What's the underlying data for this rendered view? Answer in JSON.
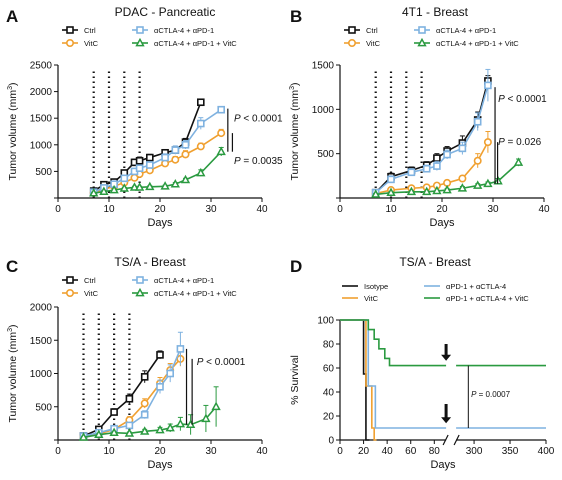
{
  "chart_data": [
    {
      "panel": "A",
      "type": "line",
      "title": "PDAC - Pancreatic",
      "xlabel": "Days",
      "ylabel": "Tumor volume (mm",
      "ylabel_sup": "3",
      "ylabel_close": ")",
      "xlim": [
        0,
        40
      ],
      "ylim": [
        0,
        2500
      ],
      "xticks": [
        0,
        10,
        20,
        30,
        40
      ],
      "yticks": [
        0,
        500,
        1000,
        1500,
        2000,
        2500
      ],
      "tick_labels_y": [
        "",
        "500",
        "1000",
        "1500",
        "2000",
        "2500"
      ],
      "treatment_days": [
        7,
        10,
        13,
        16
      ],
      "series": [
        {
          "name": "Ctrl",
          "color": "#111111",
          "marker": "square",
          "x": [
            7,
            9,
            11,
            13,
            15,
            16,
            18,
            21,
            23,
            25,
            28
          ],
          "y": [
            130,
            250,
            300,
            470,
            670,
            700,
            760,
            850,
            900,
            1050,
            1800
          ],
          "err": [
            20,
            30,
            40,
            50,
            60,
            70,
            60,
            60,
            60,
            70,
            0
          ]
        },
        {
          "name": "VitC",
          "color": "#f0a030",
          "marker": "circle",
          "x": [
            7,
            9,
            11,
            13,
            15,
            16,
            18,
            21,
            23,
            25,
            28,
            32
          ],
          "y": [
            100,
            160,
            220,
            290,
            380,
            450,
            520,
            650,
            720,
            820,
            970,
            1220
          ],
          "err": [
            20,
            30,
            30,
            40,
            40,
            50,
            50,
            60,
            60,
            70,
            60,
            70
          ]
        },
        {
          "name": "αCTLA-4 + αPD-1",
          "color": "#7fb2e0",
          "marker": "square",
          "x": [
            7,
            9,
            11,
            13,
            15,
            16,
            18,
            21,
            23,
            25,
            28,
            32
          ],
          "y": [
            110,
            190,
            260,
            370,
            500,
            560,
            620,
            760,
            900,
            1000,
            1400,
            1660
          ],
          "err": [
            20,
            30,
            30,
            40,
            50,
            60,
            60,
            70,
            80,
            80,
            110,
            60
          ]
        },
        {
          "name": "αCTLA-4 + αPD-1 + VitC",
          "color": "#2a9a40",
          "marker": "triangle",
          "x": [
            7,
            9,
            11,
            13,
            15,
            16,
            18,
            21,
            23,
            25,
            28,
            32
          ],
          "y": [
            90,
            120,
            150,
            180,
            200,
            200,
            210,
            220,
            260,
            340,
            470,
            870
          ],
          "err": [
            10,
            20,
            20,
            20,
            20,
            20,
            20,
            20,
            30,
            30,
            60,
            80
          ]
        }
      ],
      "annotations": [
        {
          "text_italic": "P",
          "text_rest": " < 0.0001",
          "x": 34.5,
          "y": 1440
        },
        {
          "text_italic": "P",
          "text_rest": " = 0.0035",
          "x": 34.5,
          "y": 640
        }
      ],
      "brackets": [
        {
          "x": 33.3,
          "y1": 1680,
          "y2": 870
        },
        {
          "x": 34.2,
          "y1": 1220,
          "y2": 870
        }
      ]
    },
    {
      "panel": "B",
      "type": "line",
      "title": "4T1 - Breast",
      "xlabel": "Days",
      "ylabel": "Tumor volume (mm",
      "ylabel_sup": "3",
      "ylabel_close": ")",
      "xlim": [
        0,
        40
      ],
      "ylim": [
        0,
        1500
      ],
      "xticks": [
        0,
        10,
        20,
        30,
        40
      ],
      "yticks": [
        0,
        500,
        1000,
        1500
      ],
      "tick_labels_y": [
        "",
        "500",
        "1000",
        "1500"
      ],
      "treatment_days": [
        7,
        10,
        13,
        16
      ],
      "series": [
        {
          "name": "Ctrl",
          "color": "#111111",
          "marker": "square",
          "x": [
            7,
            10,
            14,
            17,
            19,
            21,
            24,
            27,
            29
          ],
          "y": [
            60,
            240,
            310,
            370,
            450,
            530,
            620,
            880,
            1320
          ],
          "err": [
            15,
            40,
            40,
            40,
            50,
            50,
            80,
            90,
            60
          ]
        },
        {
          "name": "VitC",
          "color": "#f0a030",
          "marker": "circle",
          "x": [
            7,
            10,
            14,
            17,
            19,
            21,
            24,
            27,
            29
          ],
          "y": [
            50,
            90,
            110,
            120,
            140,
            170,
            220,
            420,
            630
          ],
          "err": [
            10,
            20,
            20,
            20,
            20,
            30,
            30,
            80,
            120
          ]
        },
        {
          "name": "αCTLA-4 + αPD-1",
          "color": "#7fb2e0",
          "marker": "square",
          "x": [
            7,
            10,
            14,
            17,
            19,
            21,
            24,
            27,
            29
          ],
          "y": [
            60,
            210,
            290,
            330,
            360,
            490,
            560,
            860,
            1270
          ],
          "err": [
            15,
            40,
            40,
            40,
            50,
            50,
            70,
            100,
            180
          ]
        },
        {
          "name": "αCTLA-4 + αPD-1 + VitC",
          "color": "#2a9a40",
          "marker": "triangle",
          "x": [
            7,
            10,
            14,
            17,
            19,
            21,
            24,
            27,
            29,
            31,
            35
          ],
          "y": [
            40,
            60,
            70,
            70,
            80,
            90,
            110,
            140,
            160,
            190,
            400
          ],
          "err": [
            10,
            10,
            10,
            10,
            10,
            15,
            20,
            20,
            20,
            30,
            40
          ]
        }
      ],
      "annotations": [
        {
          "text_italic": "P",
          "text_rest": " < 0.0001",
          "x": 31,
          "y": 1080
        },
        {
          "text_italic": "P",
          "text_rest": " = 0.026",
          "x": 31,
          "y": 600
        }
      ],
      "brackets": [
        {
          "x": 30.4,
          "y1": 1250,
          "y2": 160
        },
        {
          "x": 30.9,
          "y1": 630,
          "y2": 160
        }
      ]
    },
    {
      "panel": "C",
      "type": "line",
      "title": "TS/A - Breast",
      "xlabel": "Days",
      "ylabel": "Tumor volume (mm",
      "ylabel_sup": "3",
      "ylabel_close": ")",
      "xlim": [
        0,
        40
      ],
      "ylim": [
        0,
        2000
      ],
      "xticks": [
        0,
        10,
        20,
        30,
        40
      ],
      "yticks": [
        0,
        500,
        1000,
        1500,
        2000
      ],
      "tick_labels_y": [
        "",
        "500",
        "1000",
        "1500",
        "2000"
      ],
      "treatment_days": [
        5,
        8,
        11,
        14
      ],
      "series": [
        {
          "name": "Ctrl",
          "color": "#111111",
          "marker": "square",
          "x": [
            5,
            8,
            11,
            14,
            17,
            20
          ],
          "y": [
            60,
            160,
            420,
            620,
            950,
            1280
          ],
          "err": [
            15,
            30,
            50,
            70,
            90,
            60
          ]
        },
        {
          "name": "VitC",
          "color": "#f0a030",
          "marker": "circle",
          "x": [
            5,
            8,
            11,
            14,
            17,
            20,
            22,
            24
          ],
          "y": [
            50,
            90,
            160,
            300,
            550,
            850,
            1050,
            1220
          ],
          "err": [
            10,
            20,
            30,
            50,
            70,
            90,
            100,
            110
          ]
        },
        {
          "name": "αCTLA-4 + αPD-1",
          "color": "#7fb2e0",
          "marker": "square",
          "x": [
            5,
            8,
            11,
            14,
            17,
            20,
            22,
            24
          ],
          "y": [
            60,
            110,
            170,
            220,
            380,
            800,
            1000,
            1370
          ],
          "err": [
            15,
            20,
            30,
            40,
            60,
            100,
            130,
            250
          ]
        },
        {
          "name": "αCTLA-4 + αPD-1 + VitC",
          "color": "#2a9a40",
          "marker": "triangle",
          "x": [
            5,
            8,
            11,
            14,
            17,
            20,
            22,
            24,
            26,
            29,
            31
          ],
          "y": [
            40,
            80,
            110,
            100,
            130,
            150,
            180,
            240,
            230,
            320,
            500
          ],
          "err": [
            10,
            15,
            20,
            20,
            30,
            40,
            60,
            100,
            150,
            200,
            300
          ]
        }
      ],
      "annotations": [
        {
          "text_italic": "P",
          "text_rest": " < 0.0001",
          "x": 27.2,
          "y": 1130
        }
      ],
      "brackets": [
        {
          "x": 25.2,
          "y1": 1370,
          "y2": 230
        },
        {
          "x": 26.3,
          "y1": 1220,
          "y2": 230
        }
      ]
    },
    {
      "panel": "D",
      "type": "line",
      "title": "TS/A - Breast",
      "xlabel": "Days",
      "ylabel": "% Survival",
      "ylim": [
        0,
        100
      ],
      "yticks": [
        0,
        20,
        40,
        60,
        80,
        100
      ],
      "xticks_left": [
        0,
        20,
        40,
        60,
        80
      ],
      "xticks_right": [
        300,
        350,
        400
      ],
      "xlim_left": [
        0,
        90
      ],
      "xlim_right": [
        275,
        400
      ],
      "series": [
        {
          "name": "Isotype",
          "color": "#111111",
          "steps": [
            [
              0,
              100
            ],
            [
              20,
              100
            ],
            [
              20,
              55
            ],
            [
              22,
              55
            ],
            [
              22,
              0
            ],
            [
              25,
              0
            ]
          ]
        },
        {
          "name": "VitC",
          "color": "#f0a030",
          "steps": [
            [
              0,
              100
            ],
            [
              22,
              100
            ],
            [
              22,
              45
            ],
            [
              27,
              45
            ],
            [
              27,
              10
            ],
            [
              29,
              10
            ],
            [
              29,
              0
            ],
            [
              31,
              0
            ]
          ]
        },
        {
          "name": "αPD-1 + αCTLA-4",
          "color": "#7fb2e0",
          "steps": [
            [
              0,
              100
            ],
            [
              24,
              100
            ],
            [
              24,
              45
            ],
            [
              30,
              45
            ],
            [
              30,
              10
            ],
            [
              90,
              10
            ],
            [
              275,
              10
            ],
            [
              400,
              10
            ]
          ]
        },
        {
          "name": "αPD-1 + αCTLA-4 + VitC",
          "color": "#2a9a40",
          "steps": [
            [
              0,
              100
            ],
            [
              24,
              100
            ],
            [
              24,
              92
            ],
            [
              29,
              92
            ],
            [
              29,
              84
            ],
            [
              33,
              84
            ],
            [
              33,
              76
            ],
            [
              38,
              76
            ],
            [
              38,
              68
            ],
            [
              42,
              68
            ],
            [
              42,
              62
            ],
            [
              90,
              62
            ],
            [
              275,
              62
            ],
            [
              400,
              62
            ]
          ]
        }
      ],
      "annotations": [
        {
          "text_italic": "P",
          "text_rest": " = 0.0007",
          "x": 307,
          "y": 36
        }
      ],
      "arrows": [
        {
          "x": 90,
          "y_top": 80,
          "y_bottom": 66
        },
        {
          "x": 90,
          "y_top": 30,
          "y_bottom": 14
        }
      ]
    }
  ]
}
